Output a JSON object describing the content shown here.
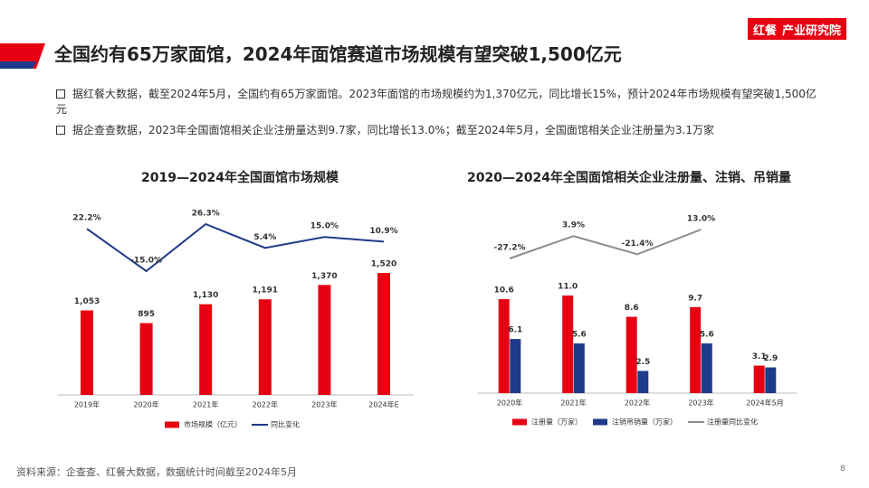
{
  "header": {
    "title": "全国约有65万家面馆，2024年面馆赛道市场规模有望突破1,500亿元",
    "logo_mark": "红餐",
    "logo_text": "产业研究院"
  },
  "bullets": [
    "据红餐大数据，截至2024年5月，全国约有65万家面馆。2023年面馆的市场规模约为1,370亿元，同比增长15%，预计2024年市场规模有望突破1,500亿元",
    "据企查查数据，2023年全国面馆相关企业注册量达到9.7家，同比增长13.0%；截至2024年5月，全国面馆相关企业注册量为3.1万家"
  ],
  "source": "资料来源：企查查、红餐大数据，数据统计时间截至2024年5月",
  "page_number": 8,
  "chart_data": [
    {
      "type": "bar_line",
      "title": "2019—2024年全国面馆市场规模",
      "categories": [
        "2019年",
        "2020年",
        "2021年",
        "2022年",
        "2023年",
        "2024年E"
      ],
      "series": [
        {
          "name": "市场规模（亿元）",
          "color": "#e60012",
          "type": "bar",
          "values": [
            1053,
            895,
            1130,
            1191,
            1370,
            1520
          ],
          "value_labels": [
            "1,053",
            "895",
            "1,130",
            "1,191",
            "1,370",
            "1,520"
          ]
        },
        {
          "name": "同比变化",
          "color": "#1f3a8a",
          "type": "line",
          "axis": "y2",
          "values": [
            22.2,
            -15.0,
            26.3,
            5.4,
            15.0,
            10.9
          ],
          "value_labels": [
            "22.2%",
            "-15.0%",
            "26.3%",
            "5.4%",
            "15.0%",
            "10.9%"
          ]
        }
      ]
    },
    {
      "type": "bar_line",
      "title": "2020—2024年全国面馆相关企业注册量、注销、吊销量",
      "categories": [
        "2020年",
        "2021年",
        "2022年",
        "2023年",
        "2024年5月"
      ],
      "series": [
        {
          "name": "注册量（万家）",
          "color": "#e60012",
          "type": "bar",
          "values": [
            10.6,
            11.0,
            8.6,
            9.7,
            3.1
          ],
          "value_labels": [
            "10.6",
            "11.0",
            "8.6",
            "9.7",
            "3.1"
          ]
        },
        {
          "name": "注销吊销量（万家）",
          "color": "#1f3a8a",
          "type": "bar",
          "values": [
            6.1,
            5.6,
            2.5,
            5.6,
            2.9
          ]
        },
        {
          "name": "注册量同比变化",
          "color": "#8c8c8c",
          "type": "line",
          "axis": "y2",
          "values": [
            -27.2,
            3.9,
            -21.4,
            13.0,
            null
          ],
          "value_labels": [
            "-27.2%",
            "3.9%",
            "-21.4%",
            "13.0%",
            null
          ]
        }
      ]
    }
  ]
}
